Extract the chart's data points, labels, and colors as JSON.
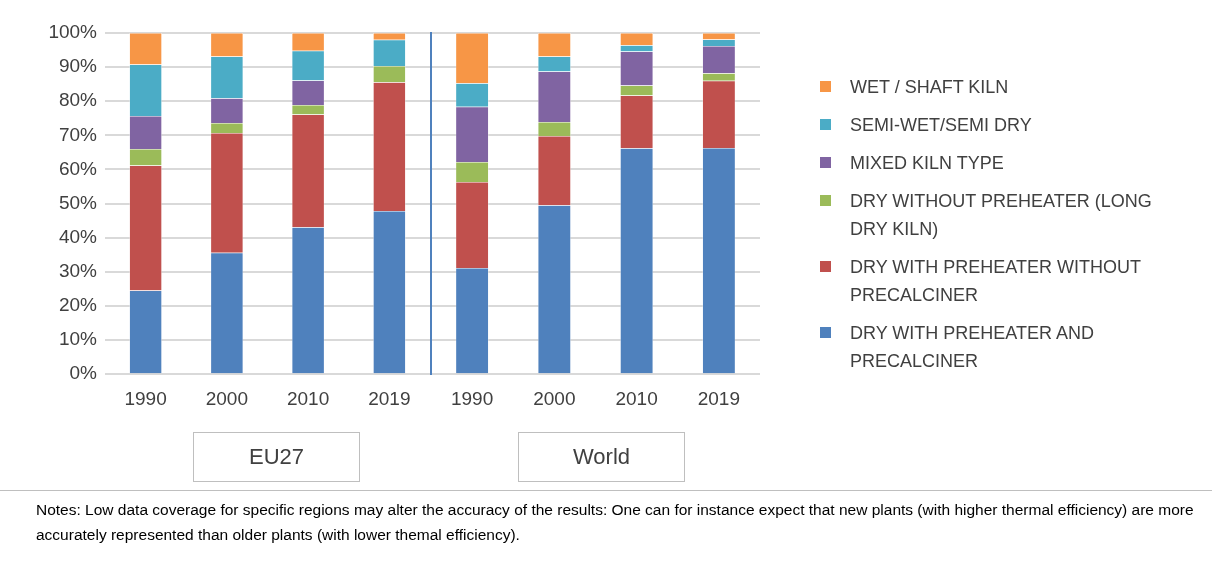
{
  "chart_data": [
    {
      "type": "bar",
      "stacked": true,
      "xlabel": "EU27",
      "categories": [
        "1990",
        "2000",
        "2010",
        "2019"
      ],
      "ylim": [
        0,
        100
      ],
      "yticks": [
        {
          "value": 0,
          "label": "0%"
        },
        {
          "value": 10,
          "label": "10%"
        },
        {
          "value": 20,
          "label": "20%"
        },
        {
          "value": 30,
          "label": "30%"
        },
        {
          "value": 40,
          "label": "40%"
        },
        {
          "value": 50,
          "label": "50%"
        },
        {
          "value": 60,
          "label": "60%"
        },
        {
          "value": 70,
          "label": "70%"
        },
        {
          "value": 80,
          "label": "80%"
        },
        {
          "value": 90,
          "label": "90%"
        },
        {
          "value": 100,
          "label": "100%"
        }
      ],
      "grid": "y",
      "annotations": [
        "Notes: Low data coverage for specific regions may alter the accuracy of the results: One can for instance expect that new plants (with higher thermal efficiency) are more accurately represented than older plants (with lower themal efficiency)."
      ],
      "series": [
        {
          "color": "#4f81bd",
          "values": [
            24.5,
            35.6,
            43.1,
            47.8
          ]
        },
        {
          "color": "#c0504d",
          "values": [
            36.7,
            35.1,
            33.0,
            37.8
          ]
        },
        {
          "color": "#9bbb59",
          "values": [
            4.8,
            2.9,
            2.8,
            4.7
          ]
        },
        {
          "color": "#8064a2",
          "values": [
            9.7,
            7.3,
            7.2,
            0
          ]
        },
        {
          "color": "#4bacc6",
          "values": [
            15.1,
            12.2,
            8.7,
            7.7
          ]
        },
        {
          "color": "#f79646",
          "values": [
            9.2,
            6.9,
            5.2,
            2.0
          ]
        }
      ]
    },
    {
      "type": "bar",
      "stacked": true,
      "xlabel": "World",
      "categories": [
        "1990",
        "2000",
        "2010",
        "2019"
      ],
      "ylim": [
        0,
        100
      ],
      "yticks": [
        0,
        10,
        20,
        30,
        40,
        50,
        60,
        70,
        80,
        90,
        100
      ],
      "grid": "y",
      "legend": "right",
      "tick_labels": "x",
      "series": [
        {
          "name": "DRY WITH PREHEATER AND PRECALCINER",
          "color": "#4f81bd",
          "values": [
            31.1,
            49.5,
            66.2,
            66.3
          ]
        },
        {
          "name": "DRY WITH PREHEATER WITHOUT PRECALCINER",
          "color": "#c0504d",
          "values": [
            25.2,
            20.3,
            15.5,
            19.7
          ]
        },
        {
          "name": "DRY WITHOUT PREHEATER (LONG DRY KILN)",
          "color": "#9bbb59",
          "values": [
            5.9,
            4.1,
            2.9,
            2.2
          ]
        },
        {
          "name": "MIXED KILN TYPE",
          "color": "#8064a2",
          "values": [
            16.2,
            14.8,
            10.0,
            8.0
          ]
        },
        {
          "name": "SEMI-WET/SEMI DRY",
          "color": "#4bacc6",
          "values": [
            6.9,
            4.4,
            1.8,
            1.9
          ]
        },
        {
          "name": "WET / SHAFT KILN",
          "color": "#f79646",
          "values": [
            14.7,
            6.9,
            3.6,
            1.9
          ]
        }
      ]
    }
  ]
}
